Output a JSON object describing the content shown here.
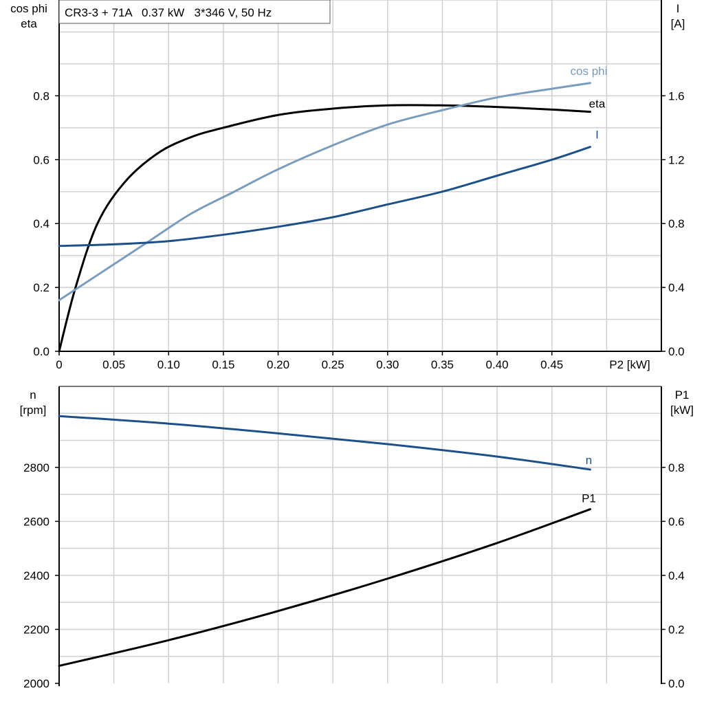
{
  "chart_data": [
    {
      "type": "line",
      "title": "CR3-3 + 71A   0.37 kW   3*346 V, 50 Hz",
      "xlabel": "P2 [kW]",
      "ylabel_left": [
        "cos phi",
        "eta"
      ],
      "ylabel_right": [
        "I",
        "[A]"
      ],
      "xlim": [
        0,
        0.55
      ],
      "ylim_left": [
        0,
        1.1
      ],
      "ylim_right": [
        0,
        2.2
      ],
      "x_ticks": [
        "0",
        "0.05",
        "0.10",
        "0.15",
        "0.20",
        "0.25",
        "0.30",
        "0.35",
        "0.40",
        "0.45"
      ],
      "y_ticks_left": [
        "0.0",
        "0.2",
        "0.4",
        "0.6",
        "0.8"
      ],
      "y_ticks_right": [
        "0.0",
        "0.4",
        "0.8",
        "1.2",
        "1.6"
      ],
      "grid": true,
      "series": [
        {
          "name": "eta",
          "axis": "left",
          "color": "#000000",
          "x": [
            0,
            0.015,
            0.035,
            0.06,
            0.09,
            0.12,
            0.15,
            0.2,
            0.25,
            0.3,
            0.35,
            0.4,
            0.45,
            0.485
          ],
          "y": [
            0,
            0.2,
            0.4,
            0.53,
            0.62,
            0.67,
            0.7,
            0.74,
            0.76,
            0.77,
            0.77,
            0.765,
            0.757,
            0.75
          ]
        },
        {
          "name": "cos phi",
          "axis": "left",
          "color": "#7a9cbd",
          "x": [
            0,
            0.04,
            0.08,
            0.12,
            0.16,
            0.2,
            0.25,
            0.3,
            0.35,
            0.4,
            0.45,
            0.485
          ],
          "y": [
            0.16,
            0.25,
            0.34,
            0.43,
            0.5,
            0.57,
            0.645,
            0.71,
            0.755,
            0.795,
            0.822,
            0.84
          ]
        },
        {
          "name": "I",
          "axis": "right",
          "color": "#1d5089",
          "x": [
            0,
            0.05,
            0.1,
            0.15,
            0.2,
            0.25,
            0.3,
            0.35,
            0.4,
            0.45,
            0.485
          ],
          "y": [
            0.66,
            0.67,
            0.69,
            0.73,
            0.78,
            0.84,
            0.92,
            1.0,
            1.1,
            1.2,
            1.28
          ]
        }
      ]
    },
    {
      "type": "line",
      "xlabel": "",
      "ylabel_left": [
        "n",
        "[rpm]"
      ],
      "ylabel_right": [
        "P1",
        "[kW]"
      ],
      "xlim": [
        0,
        0.55
      ],
      "ylim_left": [
        2000,
        3100
      ],
      "ylim_right": [
        0,
        1.1
      ],
      "y_ticks_left": [
        "2000",
        "2200",
        "2400",
        "2600",
        "2800"
      ],
      "y_ticks_right": [
        "0.0",
        "0.2",
        "0.4",
        "0.6",
        "0.8"
      ],
      "grid": true,
      "series": [
        {
          "name": "n",
          "axis": "left",
          "color": "#1d5089",
          "x": [
            0,
            0.1,
            0.2,
            0.3,
            0.4,
            0.485
          ],
          "y": [
            2990,
            2962,
            2926,
            2886,
            2840,
            2792
          ]
        },
        {
          "name": "P1",
          "axis": "right",
          "color": "#000000",
          "x": [
            0,
            0.1,
            0.2,
            0.3,
            0.4,
            0.485
          ],
          "y": [
            0.065,
            0.16,
            0.268,
            0.388,
            0.52,
            0.645
          ]
        }
      ]
    }
  ]
}
